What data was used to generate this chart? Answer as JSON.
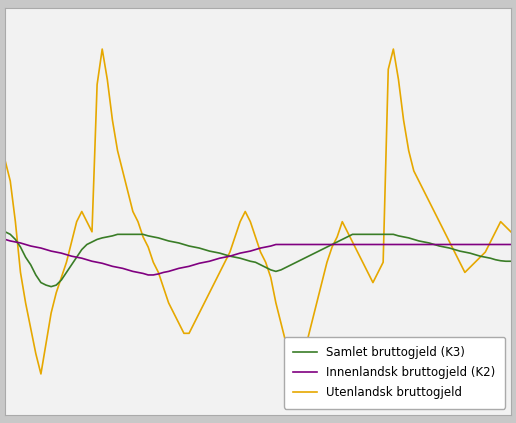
{
  "background_color": "#d4d4d4",
  "plot_bg_color": "#f2f2f2",
  "grid_color": "#ffffff",
  "legend_labels": [
    "Samlet bruttogjeld (K3)",
    "Innenlandsk bruttogjeld (K2)",
    "Utenlandsk bruttogjeld"
  ],
  "colors": [
    "#3a7d27",
    "#800080",
    "#e6a800"
  ],
  "linewidths": [
    1.2,
    1.2,
    1.2
  ],
  "n_points": 100,
  "samlet": [
    6.0,
    5.5,
    4.5,
    3.0,
    1.0,
    -0.5,
    -2.5,
    -4.0,
    -4.5,
    -4.8,
    -4.5,
    -3.5,
    -2.0,
    -0.5,
    1.0,
    2.5,
    3.5,
    4.0,
    4.5,
    4.8,
    5.0,
    5.2,
    5.5,
    5.5,
    5.5,
    5.5,
    5.5,
    5.5,
    5.2,
    5.0,
    4.8,
    4.5,
    4.2,
    4.0,
    3.8,
    3.5,
    3.2,
    3.0,
    2.8,
    2.5,
    2.2,
    2.0,
    1.8,
    1.5,
    1.2,
    1.0,
    0.8,
    0.5,
    0.2,
    0.0,
    -0.5,
    -1.0,
    -1.5,
    -1.8,
    -1.5,
    -1.0,
    -0.5,
    0.0,
    0.5,
    1.0,
    1.5,
    2.0,
    2.5,
    3.0,
    3.5,
    4.0,
    4.5,
    5.0,
    5.5,
    5.5,
    5.5,
    5.5,
    5.5,
    5.5,
    5.5,
    5.5,
    5.5,
    5.2,
    5.0,
    4.8,
    4.5,
    4.2,
    4.0,
    3.8,
    3.5,
    3.2,
    3.0,
    2.8,
    2.5,
    2.2,
    2.0,
    1.8,
    1.5,
    1.2,
    1.0,
    0.8,
    0.5,
    0.3,
    0.2,
    0.2
  ],
  "innenlandsk": [
    4.5,
    4.2,
    4.0,
    3.8,
    3.5,
    3.2,
    3.0,
    2.8,
    2.5,
    2.2,
    2.0,
    1.8,
    1.5,
    1.2,
    1.0,
    0.8,
    0.5,
    0.2,
    0.0,
    -0.2,
    -0.5,
    -0.8,
    -1.0,
    -1.2,
    -1.5,
    -1.8,
    -2.0,
    -2.2,
    -2.5,
    -2.5,
    -2.3,
    -2.0,
    -1.8,
    -1.5,
    -1.2,
    -1.0,
    -0.8,
    -0.5,
    -0.2,
    0.0,
    0.2,
    0.5,
    0.8,
    1.0,
    1.2,
    1.5,
    1.8,
    2.0,
    2.2,
    2.5,
    2.8,
    3.0,
    3.2,
    3.5,
    3.5,
    3.5,
    3.5,
    3.5,
    3.5,
    3.5,
    3.5,
    3.5,
    3.5,
    3.5,
    3.5,
    3.5,
    3.5,
    3.5,
    3.5,
    3.5,
    3.5,
    3.5,
    3.5,
    3.5,
    3.5,
    3.5,
    3.5,
    3.5,
    3.5,
    3.5,
    3.5,
    3.5,
    3.5,
    3.5,
    3.5,
    3.5,
    3.5,
    3.5,
    3.5,
    3.5,
    3.5,
    3.5,
    3.5,
    3.5,
    3.5,
    3.5,
    3.5,
    3.5,
    3.5,
    3.5
  ],
  "utenlandsk": [
    20.0,
    16.0,
    8.0,
    -2.0,
    -8.0,
    -13.0,
    -18.0,
    -22.0,
    -16.0,
    -10.0,
    -6.0,
    -3.0,
    0.0,
    4.0,
    8.0,
    10.0,
    8.0,
    6.0,
    35.0,
    42.0,
    36.0,
    28.0,
    22.0,
    18.0,
    14.0,
    10.0,
    8.0,
    5.0,
    3.0,
    0.0,
    -2.0,
    -5.0,
    -8.0,
    -10.0,
    -12.0,
    -14.0,
    -14.0,
    -12.0,
    -10.0,
    -8.0,
    -6.0,
    -4.0,
    -2.0,
    0.0,
    2.0,
    5.0,
    8.0,
    10.0,
    8.0,
    5.0,
    2.0,
    0.0,
    -3.0,
    -8.0,
    -12.0,
    -16.0,
    -20.0,
    -22.0,
    -20.0,
    -16.0,
    -12.0,
    -8.0,
    -4.0,
    0.0,
    3.0,
    5.0,
    8.0,
    6.0,
    4.0,
    2.0,
    0.0,
    -2.0,
    -4.0,
    -2.0,
    0.0,
    38.0,
    42.0,
    36.0,
    28.0,
    22.0,
    18.0,
    16.0,
    14.0,
    12.0,
    10.0,
    8.0,
    6.0,
    4.0,
    2.0,
    0.0,
    -2.0,
    -1.0,
    0.0,
    1.0,
    2.0,
    4.0,
    6.0,
    8.0,
    7.0,
    6.0
  ],
  "ylim": [
    -30,
    50
  ],
  "legend_loc": "lower right",
  "legend_fontsize": 8.5,
  "outer_bg": "#c8c8c8"
}
